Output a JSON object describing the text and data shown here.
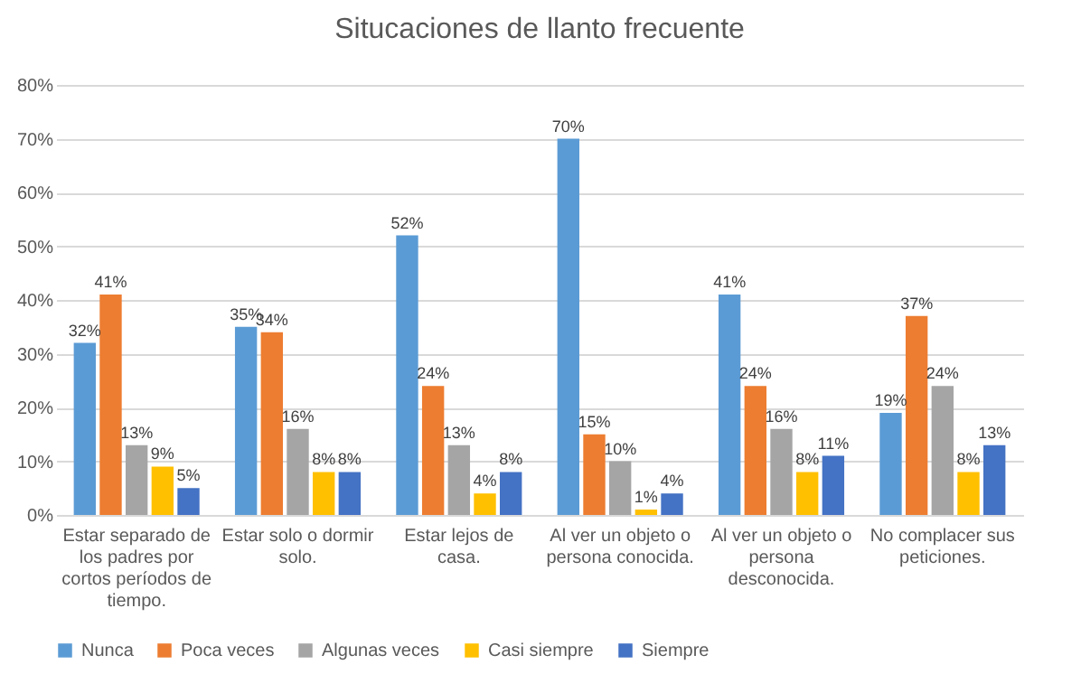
{
  "chart_data": {
    "type": "bar",
    "title": "Situcaciones de llanto frecuente",
    "categories": [
      "Estar separado de los padres por cortos períodos de tiempo.",
      "Estar solo o dormir solo.",
      "Estar lejos de casa.",
      "Al ver un objeto o persona conocida.",
      "Al ver un objeto o persona desconocida.",
      "No complacer sus peticiones."
    ],
    "series": [
      {
        "name": "Nunca",
        "color": "#5b9bd5",
        "values": [
          32,
          35,
          52,
          70,
          41,
          19
        ],
        "value_labels": [
          "32%",
          "35%",
          "52%",
          "70%",
          "41%",
          "19%"
        ]
      },
      {
        "name": "Poca veces",
        "color": "#ed7d31",
        "values": [
          41,
          34,
          24,
          15,
          24,
          37
        ],
        "value_labels": [
          "41%",
          "34%",
          "24%",
          "15%",
          "24%",
          "37%"
        ]
      },
      {
        "name": "Algunas veces",
        "color": "#a5a5a5",
        "values": [
          13,
          16,
          13,
          10,
          16,
          24
        ],
        "value_labels": [
          "13%",
          "16%",
          "13%",
          "10%",
          "16%",
          "24%"
        ]
      },
      {
        "name": "Casi siempre",
        "color": "#ffc000",
        "values": [
          9,
          8,
          4,
          1,
          8,
          8
        ],
        "value_labels": [
          "9%",
          "8%",
          "4%",
          "1%",
          "8%",
          "8%"
        ]
      },
      {
        "name": "Siempre",
        "color": "#4472c4",
        "values": [
          5,
          8,
          8,
          4,
          11,
          13
        ],
        "value_labels": [
          "5%",
          "8%",
          "8%",
          "4%",
          "11%",
          "13%"
        ]
      }
    ],
    "ylim": [
      0,
      80
    ],
    "yticks": [
      {
        "value": 0,
        "label": "0%"
      },
      {
        "value": 10,
        "label": "10%"
      },
      {
        "value": 20,
        "label": "20%"
      },
      {
        "value": 30,
        "label": "30%"
      },
      {
        "value": 40,
        "label": "40%"
      },
      {
        "value": 50,
        "label": "50%"
      },
      {
        "value": 60,
        "label": "60%"
      },
      {
        "value": 70,
        "label": "70%"
      },
      {
        "value": 80,
        "label": "80%"
      }
    ],
    "grid": "y",
    "legend": "bottom"
  }
}
